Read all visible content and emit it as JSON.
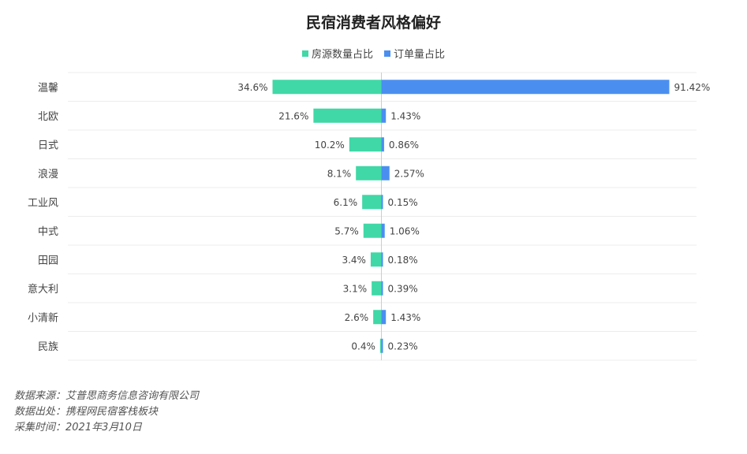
{
  "chart_data": {
    "type": "bar",
    "title": "民宿消费者风格偏好",
    "orientation": "horizontal-diverging",
    "categories": [
      "温馨",
      "北欧",
      "日式",
      "浪漫",
      "工业风",
      "中式",
      "田园",
      "意大利",
      "小清新",
      "民族"
    ],
    "series": [
      {
        "name": "房源数量占比",
        "color": "#3fd8a6",
        "values": [
          34.6,
          21.6,
          10.2,
          8.1,
          6.1,
          5.7,
          3.4,
          3.1,
          2.6,
          0.4
        ],
        "labels": [
          "34.6%",
          "21.6%",
          "10.2%",
          "8.1%",
          "6.1%",
          "5.7%",
          "3.4%",
          "3.1%",
          "2.6%",
          "0.4%"
        ]
      },
      {
        "name": "订单量占比",
        "color": "#4a8ff0",
        "values": [
          91.42,
          1.43,
          0.86,
          2.57,
          0.15,
          1.06,
          0.18,
          0.39,
          1.43,
          0.23
        ],
        "labels": [
          "91.42%",
          "1.43%",
          "0.86%",
          "2.57%",
          "0.15%",
          "1.06%",
          "0.18%",
          "0.39%",
          "1.43%",
          "0.23%"
        ]
      }
    ],
    "legend_position": "top-center",
    "grid": true
  },
  "footer": {
    "source": "数据来源：艾普思商务信息咨询有限公司",
    "origin": "数据出处：携程网民宿客栈板块",
    "date": "采集时间：2021年3月10日"
  }
}
